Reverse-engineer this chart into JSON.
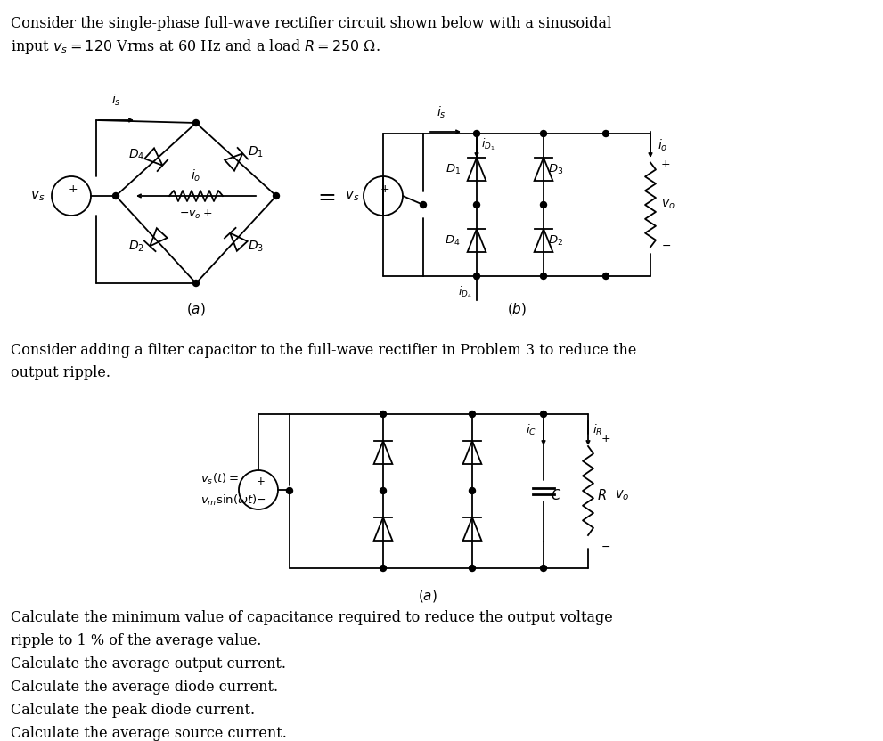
{
  "bg_color": "#ffffff",
  "text_color": "#000000",
  "line_color": "#000000",
  "title_line1": "Consider the single-phase full-wave rectifier circuit shown below with a sinusoidal",
  "title_line2": "input $v_s = 120$ Vrms at 60 Hz and a load $R = 250$ Ω.",
  "para2_line1": "Consider adding a filter capacitor to the full-wave rectifier in Problem 3 to reduce the",
  "para2_line2": "output ripple.",
  "bullet1": "Calculate the minimum value of capacitance required to reduce the output voltage",
  "bullet1b": "ripple to 1 % of the average value.",
  "bullet2": "Calculate the average output current.",
  "bullet3": "Calculate the average diode current.",
  "bullet4": "Calculate the peak diode current.",
  "bullet5": "Calculate the average source current.",
  "fig_a_label": "$(a)$",
  "fig_b_label": "$(b)$",
  "fig_c_label": "$(a)$"
}
